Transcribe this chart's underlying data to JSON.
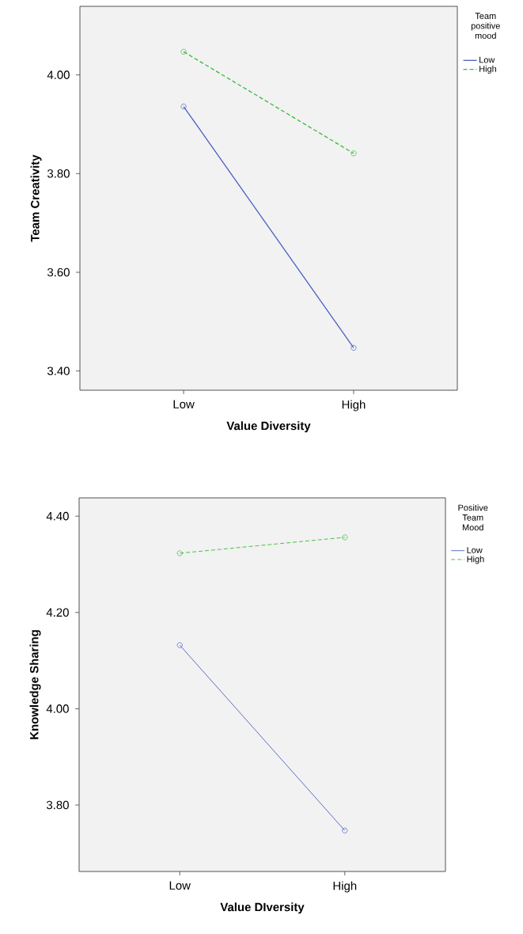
{
  "chart_data": [
    {
      "type": "line",
      "categories": [
        "Low",
        "High"
      ],
      "xlabel": "Value Diversity",
      "ylabel": "Team Creativity",
      "legend_title": "Team positive mood",
      "legend": "right",
      "marker": "circle",
      "ylim": [
        3.361,
        4.139
      ],
      "yticks": [
        {
          "value": 3.4,
          "label": "3.40"
        },
        {
          "value": 3.6,
          "label": "3.60"
        },
        {
          "value": 3.8,
          "label": "3.80"
        },
        {
          "value": 4.0,
          "label": "4.00"
        }
      ],
      "series": [
        {
          "name": "Low",
          "color": "#4a5fc1",
          "line_style": "solid",
          "values": [
            3.936,
            3.447
          ]
        },
        {
          "name": "High",
          "color": "#33bb33",
          "line_style": "dashed",
          "values": [
            4.047,
            3.841
          ]
        }
      ]
    },
    {
      "type": "line",
      "categories": [
        "Low",
        "High"
      ],
      "xlabel": "Value DIversity",
      "ylabel": "Knowledge Sharing",
      "legend_title": "Positive Team Mood",
      "legend": "right",
      "marker": "circle",
      "ylim": [
        3.662,
        4.438
      ],
      "yticks": [
        {
          "value": 3.8,
          "label": "3.80"
        },
        {
          "value": 4.0,
          "label": "4.00"
        },
        {
          "value": 4.2,
          "label": "4.20"
        },
        {
          "value": 4.4,
          "label": "4.40"
        }
      ],
      "series": [
        {
          "name": "Low",
          "color": "#4a5fc1",
          "line_style": "solid",
          "values": [
            4.132,
            3.747
          ]
        },
        {
          "name": "High",
          "color": "#33bb33",
          "line_style": "dashed",
          "values": [
            4.323,
            4.356
          ]
        }
      ]
    }
  ]
}
